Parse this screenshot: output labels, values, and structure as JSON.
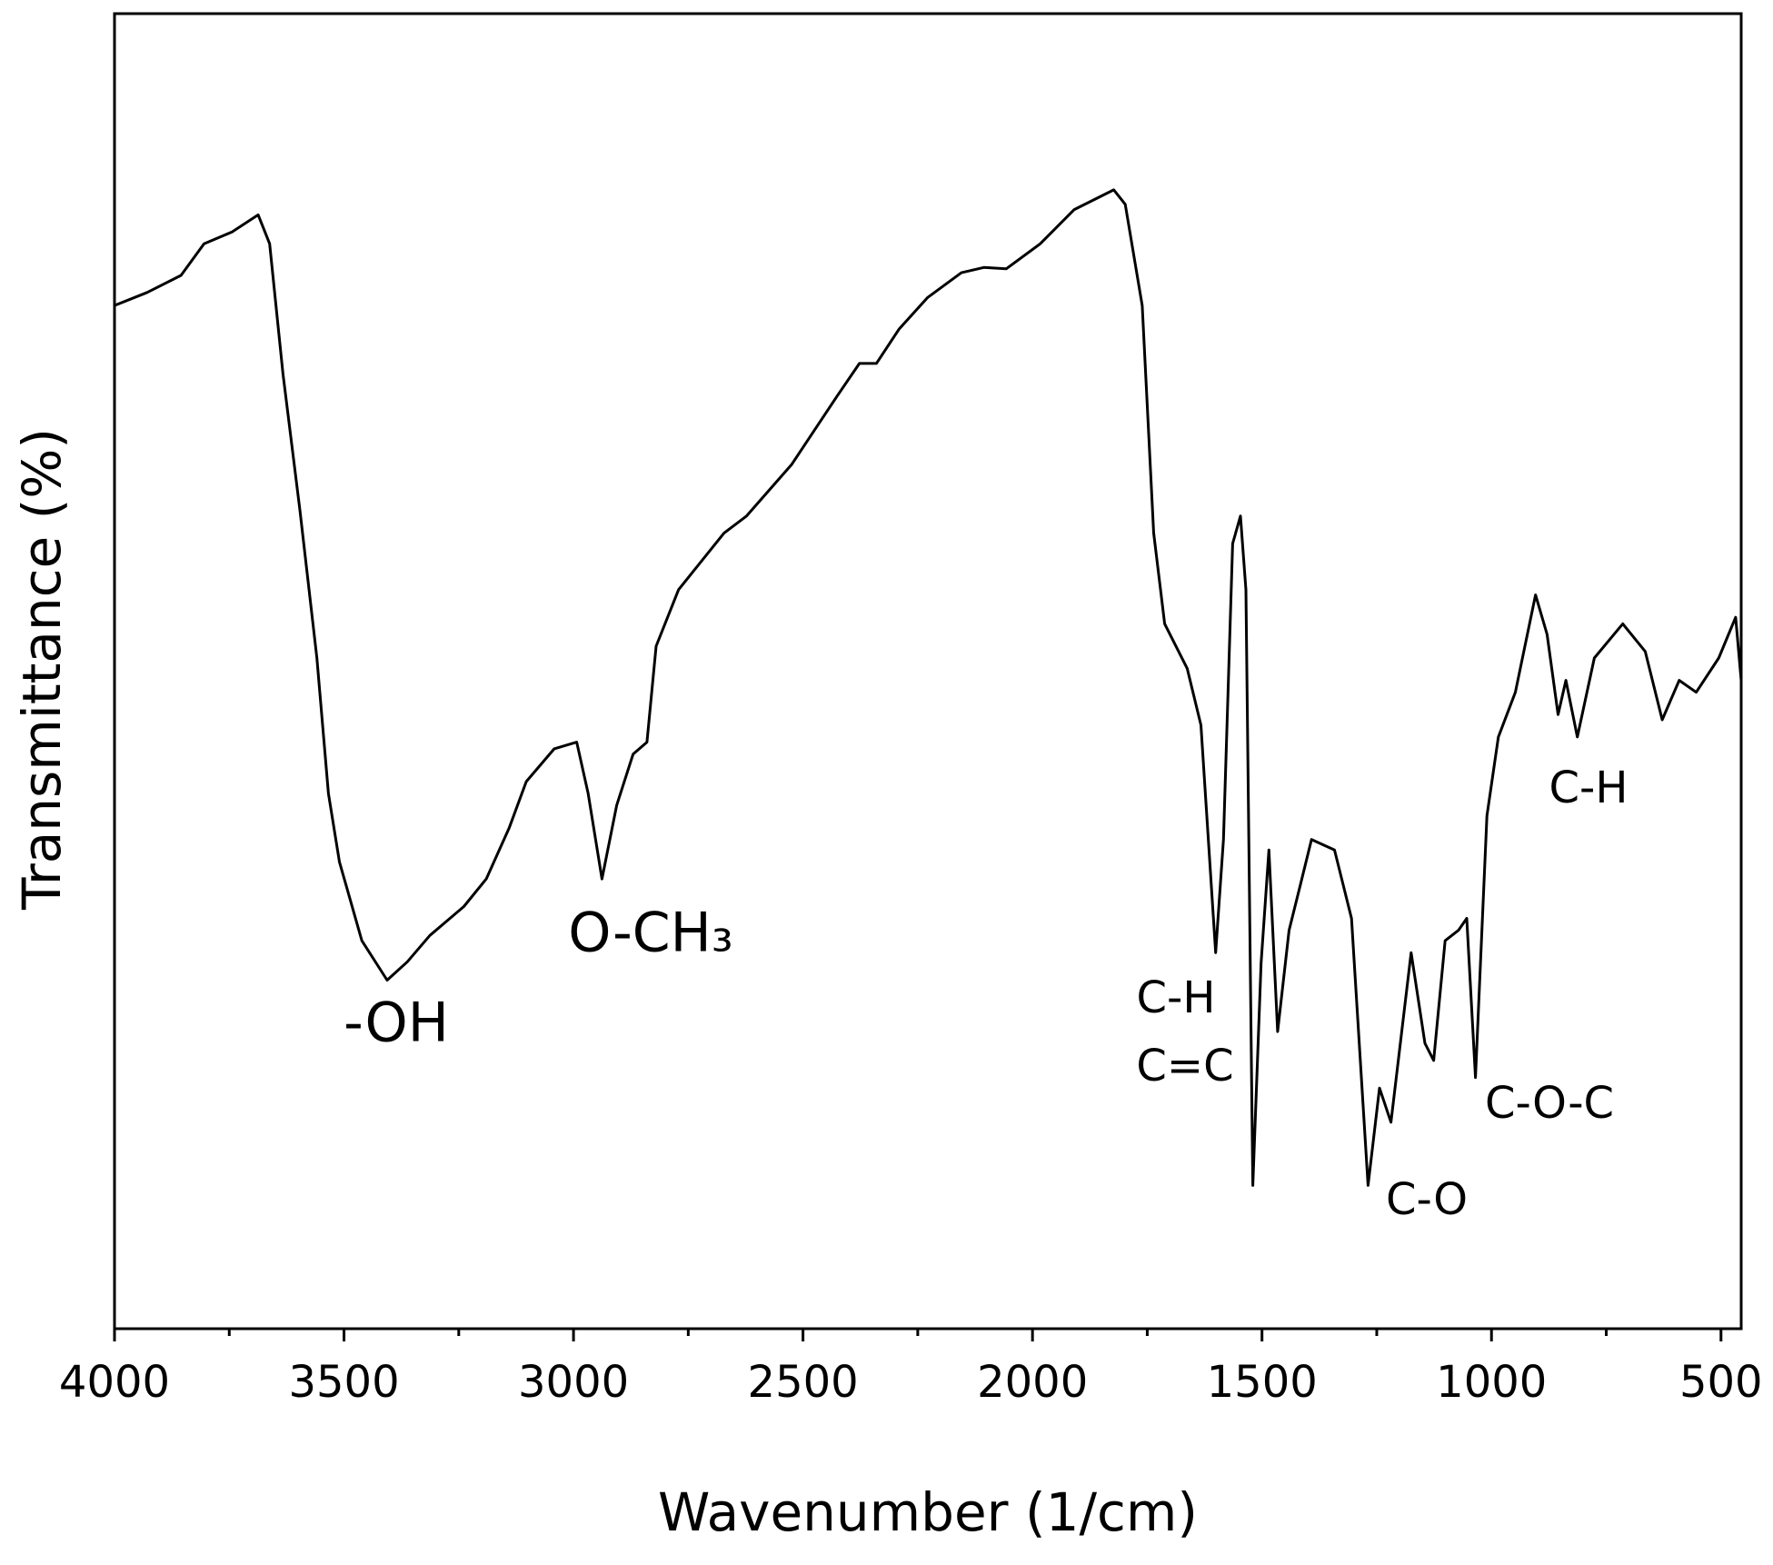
{
  "chart_data": {
    "type": "line",
    "x_label": "Wavenumber (1/cm)",
    "y_label": "Transmittance (%)",
    "color": "#000000",
    "xlim": [
      4000,
      456
    ],
    "ylim": [
      0,
      100
    ],
    "xticks": [
      4000,
      3500,
      3000,
      2500,
      2000,
      1500,
      1000,
      500
    ],
    "xminorticks": [
      3750,
      3250,
      2750,
      2250,
      1750,
      1250,
      750
    ],
    "x": [
      4000,
      3929,
      3855,
      3805,
      3744,
      3687,
      3662,
      3633,
      3596,
      3559,
      3534,
      3510,
      3461,
      3406,
      3362,
      3313,
      3239,
      3190,
      3140,
      3103,
      3042,
      2993,
      2968,
      2938,
      2906,
      2870,
      2840,
      2820,
      2771,
      2672,
      2623,
      2525,
      2426,
      2377,
      2340,
      2291,
      2229,
      2155,
      2106,
      2057,
      1983,
      1909,
      1823,
      1798,
      1761,
      1736,
      1712,
      1663,
      1633,
      1601,
      1584,
      1564,
      1547,
      1535,
      1520,
      1502,
      1485,
      1466,
      1441,
      1416,
      1392,
      1342,
      1305,
      1269,
      1244,
      1219,
      1175,
      1145,
      1126,
      1101,
      1072,
      1054,
      1035,
      1010,
      985,
      948,
      904,
      879,
      855,
      838,
      813,
      776,
      714,
      665,
      628,
      591,
      554,
      505,
      468,
      456
    ],
    "values": [
      77.8,
      78.8,
      80.1,
      82.5,
      83.4,
      84.7,
      82.5,
      72.6,
      62.2,
      51.0,
      40.7,
      35.5,
      29.5,
      26.5,
      27.9,
      29.9,
      32.1,
      34.2,
      38.1,
      41.6,
      44.1,
      44.6,
      40.7,
      34.2,
      39.8,
      43.7,
      44.6,
      51.9,
      56.2,
      60.5,
      61.8,
      65.7,
      70.9,
      73.4,
      73.4,
      76.0,
      78.4,
      80.3,
      80.7,
      80.6,
      82.5,
      85.1,
      86.6,
      85.5,
      77.8,
      60.5,
      53.6,
      50.2,
      45.9,
      28.6,
      37.2,
      59.7,
      61.8,
      56.2,
      10.9,
      27.8,
      36.4,
      22.6,
      30.3,
      33.8,
      37.2,
      36.4,
      31.2,
      10.9,
      18.3,
      15.7,
      28.6,
      21.7,
      20.4,
      29.5,
      30.3,
      31.2,
      19.1,
      39.0,
      45.0,
      48.4,
      55.8,
      52.8,
      46.7,
      49.3,
      45.0,
      51.0,
      53.6,
      51.5,
      46.3,
      49.3,
      48.4,
      51.0,
      54.1,
      49.3
    ],
    "annotations": [
      "-OH",
      "O-CH₃",
      "C-H",
      "C=C",
      "C-O",
      "C-O-C",
      "C-H"
    ]
  }
}
